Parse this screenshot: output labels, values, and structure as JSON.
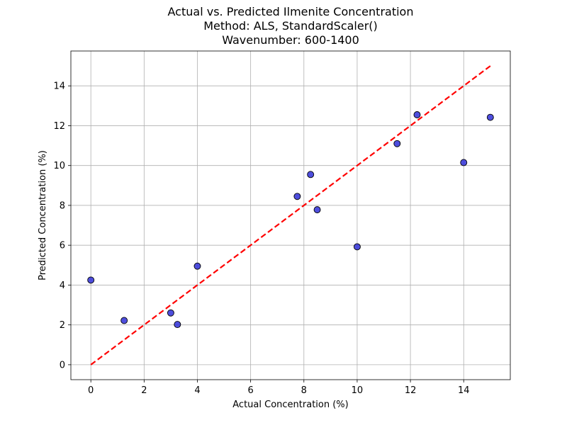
{
  "chart_data": {
    "type": "scatter",
    "title_lines": [
      "Actual vs. Predicted Ilmenite Concentration",
      "Method: ALS, StandardScaler()",
      "Wavenumber: 600-1400"
    ],
    "xlabel": "Actual Concentration (%)",
    "ylabel": "Predicted Concentration (%)",
    "xlim": [
      -0.75,
      15.75
    ],
    "ylim": [
      -0.75,
      15.75
    ],
    "xticks": [
      0,
      2,
      4,
      6,
      8,
      10,
      12,
      14
    ],
    "yticks": [
      0,
      2,
      4,
      6,
      8,
      10,
      12,
      14
    ],
    "grid": true,
    "points": [
      {
        "x": 0.0,
        "y": 4.25
      },
      {
        "x": 1.25,
        "y": 2.22
      },
      {
        "x": 3.0,
        "y": 2.6
      },
      {
        "x": 3.25,
        "y": 2.02
      },
      {
        "x": 4.0,
        "y": 4.95
      },
      {
        "x": 7.75,
        "y": 8.45
      },
      {
        "x": 8.25,
        "y": 9.55
      },
      {
        "x": 8.5,
        "y": 7.78
      },
      {
        "x": 10.0,
        "y": 5.92
      },
      {
        "x": 11.5,
        "y": 11.1
      },
      {
        "x": 12.25,
        "y": 12.55
      },
      {
        "x": 14.0,
        "y": 10.15
      },
      {
        "x": 15.0,
        "y": 12.42
      }
    ],
    "reference_line": {
      "x": [
        0,
        15
      ],
      "y": [
        0,
        15
      ],
      "style": "dashed"
    },
    "colors": {
      "point_fill": "#3b3bd9",
      "point_edge": "#000000",
      "reference_line": "#ff0000"
    }
  }
}
